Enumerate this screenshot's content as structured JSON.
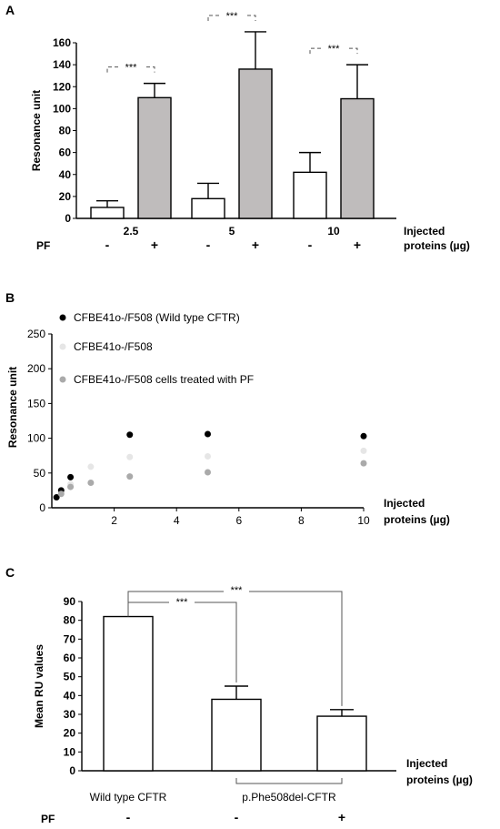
{
  "chart_data": [
    {
      "panel_label": "A",
      "type": "bar",
      "ylabel": "Resonance unit",
      "xlabel_lines": [
        "Injected",
        "proteins  (µg)"
      ],
      "ylim": [
        0,
        160
      ],
      "yticks": [
        0,
        20,
        40,
        60,
        80,
        100,
        120,
        140,
        160
      ],
      "row_label": "PF",
      "groups": [
        {
          "label": "2.5",
          "bars": [
            {
              "pf": "-",
              "value": 10,
              "err": 6,
              "fill": "#ffffff"
            },
            {
              "pf": "+",
              "value": 110,
              "err": 13,
              "fill": "#bfbcbc"
            }
          ],
          "significance": "***"
        },
        {
          "label": "5",
          "bars": [
            {
              "pf": "-",
              "value": 18,
              "err": 14,
              "fill": "#ffffff"
            },
            {
              "pf": "+",
              "value": 136,
              "err": 34,
              "fill": "#bfbcbc"
            }
          ],
          "significance": "***"
        },
        {
          "label": "10",
          "bars": [
            {
              "pf": "-",
              "value": 42,
              "err": 18,
              "fill": "#ffffff"
            },
            {
              "pf": "+",
              "value": 109,
              "err": 31,
              "fill": "#bfbcbc"
            }
          ],
          "significance": "***"
        }
      ]
    },
    {
      "panel_label": "B",
      "type": "scatter",
      "ylabel": "Resonance unit",
      "xlabel_lines": [
        "Injected",
        "proteins  (µg)"
      ],
      "xlim": [
        0,
        10
      ],
      "ylim": [
        0,
        250
      ],
      "xticks": [
        2,
        4,
        6,
        8,
        10
      ],
      "yticks": [
        0,
        50,
        100,
        150,
        200,
        250
      ],
      "grid": false,
      "legend_position": "top-left",
      "series": [
        {
          "name": "CFBE41o-/F508 (Wild type CFTR)",
          "color": "#000000",
          "points": [
            [
              0.15,
              15
            ],
            [
              0.3,
              25
            ],
            [
              0.6,
              44
            ],
            [
              2.5,
              105
            ],
            [
              5,
              106
            ],
            [
              10,
              103
            ]
          ]
        },
        {
          "name": "CFBE41o-/F508",
          "color": "#e6e6e6",
          "points": [
            [
              0.6,
              34
            ],
            [
              1.25,
              59
            ],
            [
              2.5,
              73
            ],
            [
              5,
              74
            ],
            [
              10,
              82
            ]
          ]
        },
        {
          "name": "CFBE41o-/F508 cells treated with PF",
          "color": "#aaaaaa",
          "points": [
            [
              0.3,
              20
            ],
            [
              0.6,
              30
            ],
            [
              1.25,
              36
            ],
            [
              2.5,
              45
            ],
            [
              5,
              51
            ],
            [
              10,
              64
            ]
          ]
        }
      ]
    },
    {
      "panel_label": "C",
      "type": "bar",
      "ylabel": "Mean RU values",
      "xlabel_lines": [
        "Injected",
        "proteins  (µg)"
      ],
      "ylim": [
        0,
        90
      ],
      "yticks": [
        0,
        10,
        20,
        30,
        40,
        50,
        60,
        70,
        80,
        90
      ],
      "row_label": "PF",
      "group_labels": [
        "Wild type  CFTR",
        "p.Phe508del-CFTR"
      ],
      "bars": [
        {
          "value": 82,
          "err": 0,
          "pf": "-"
        },
        {
          "value": 38,
          "err": 7,
          "pf": "-"
        },
        {
          "value": 29,
          "err": 3.5,
          "pf": "+"
        }
      ],
      "significance": [
        "***",
        "***"
      ]
    }
  ]
}
